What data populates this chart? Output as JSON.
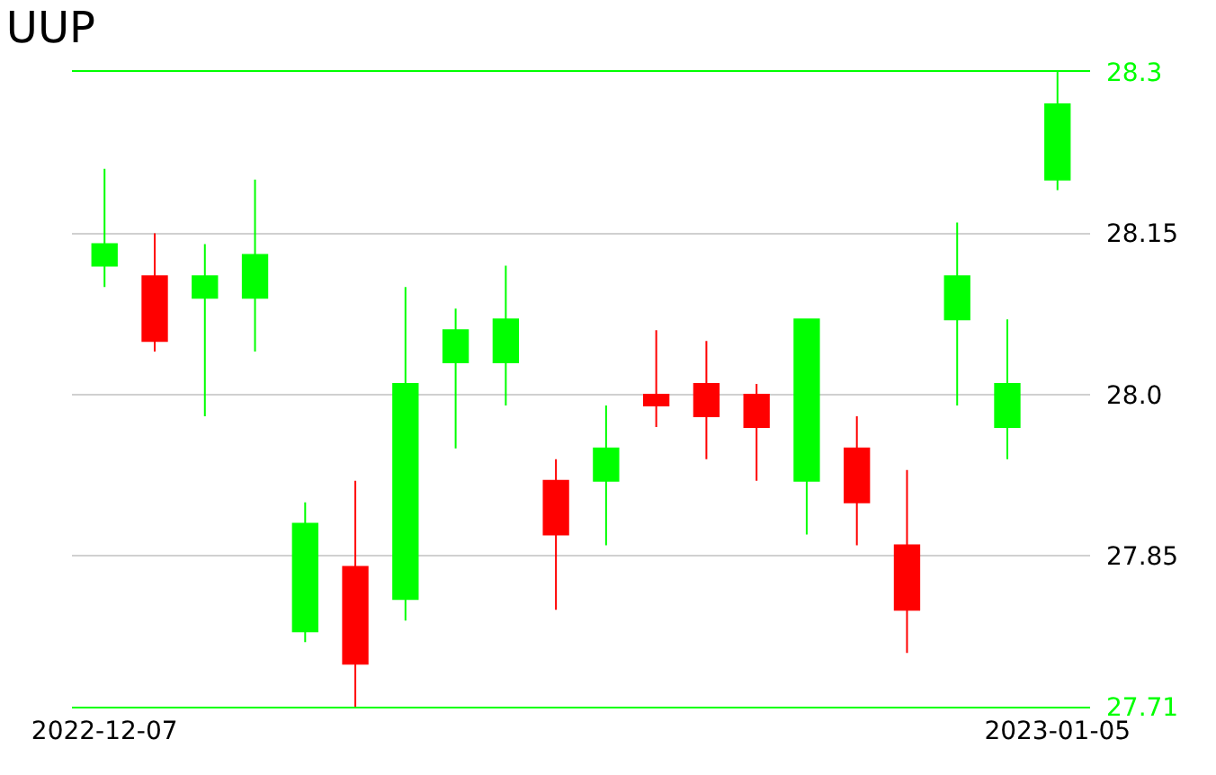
{
  "chart_data": {
    "type": "candlestick",
    "title": "UUP",
    "categories": [
      "2022-12-07",
      null,
      null,
      null,
      null,
      null,
      null,
      null,
      null,
      null,
      null,
      null,
      null,
      null,
      null,
      null,
      null,
      null,
      null,
      "2023-01-05"
    ],
    "ohlc": [
      [
        28.12,
        28.21,
        28.1,
        28.14
      ],
      [
        28.11,
        28.15,
        28.04,
        28.05
      ],
      [
        28.09,
        28.14,
        27.98,
        28.11
      ],
      [
        28.09,
        28.2,
        28.04,
        28.13
      ],
      [
        27.78,
        27.9,
        27.77,
        27.88
      ],
      [
        27.84,
        27.92,
        27.71,
        27.75
      ],
      [
        27.81,
        28.1,
        27.79,
        28.01
      ],
      [
        28.03,
        28.08,
        27.95,
        28.06
      ],
      [
        28.03,
        28.12,
        27.99,
        28.07
      ],
      [
        27.92,
        27.94,
        27.8,
        27.87
      ],
      [
        27.92,
        27.99,
        27.86,
        27.95
      ],
      [
        28.0,
        28.06,
        27.97,
        27.99
      ],
      [
        28.01,
        28.05,
        27.94,
        27.98
      ],
      [
        28.0,
        28.01,
        27.92,
        27.97
      ],
      [
        27.92,
        28.07,
        27.87,
        28.07
      ],
      [
        27.95,
        27.98,
        27.86,
        27.9
      ],
      [
        27.86,
        27.93,
        27.76,
        27.8
      ],
      [
        28.07,
        28.16,
        27.99,
        28.11
      ],
      [
        27.97,
        28.07,
        27.94,
        28.01
      ],
      [
        28.2,
        28.3,
        28.19,
        28.27
      ]
    ],
    "colors": [
      "#00ff00",
      "#ff0000",
      "#00ff00",
      "#00ff00",
      "#00ff00",
      "#ff0000",
      "#00ff00",
      "#00ff00",
      "#00ff00",
      "#ff0000",
      "#00ff00",
      "#ff0000",
      "#ff0000",
      "#ff0000",
      "#00ff00",
      "#ff0000",
      "#ff0000",
      "#00ff00",
      "#00ff00",
      "#00ff00"
    ],
    "ylim": [
      27.71,
      28.3
    ],
    "yticks": [
      27.71,
      27.85,
      {
        "value": 28.0,
        "label": "28.0"
      },
      28.15,
      28.3
    ],
    "grid": "y"
  }
}
